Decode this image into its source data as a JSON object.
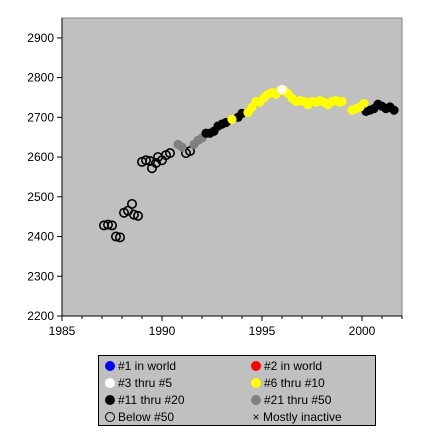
{
  "chart_data": {
    "type": "scatter",
    "title": "",
    "xlabel": "",
    "ylabel": "",
    "xlim": [
      1985,
      2002
    ],
    "ylim": [
      2200,
      2950
    ],
    "xticks": [
      1985,
      1990,
      1995,
      2000
    ],
    "yticks": [
      2200,
      2300,
      2400,
      2500,
      2600,
      2700,
      2800,
      2900
    ],
    "grid": false,
    "background": "#c0c0c0",
    "legend_position": "bottom",
    "legend": [
      {
        "name": "#1 in world",
        "color": "#0000ff",
        "marker": "filled"
      },
      {
        "name": "#2 in world",
        "color": "#ff0000",
        "marker": "filled"
      },
      {
        "name": "#3 thru #5",
        "color": "#ffffff",
        "marker": "filled"
      },
      {
        "name": "#6 thru #10",
        "color": "#ffff00",
        "marker": "filled"
      },
      {
        "name": "#11 thru #20",
        "color": "#000000",
        "marker": "filled"
      },
      {
        "name": "#21 thru #50",
        "color": "#808080",
        "marker": "filled"
      },
      {
        "name": "Below #50",
        "color": "#000000",
        "marker": "open"
      },
      {
        "name": "Mostly inactive",
        "color": "#000000",
        "marker": "x"
      }
    ],
    "series": [
      {
        "name": "Below #50",
        "color": "#000000",
        "marker": "open",
        "points": [
          [
            1987.1,
            2428
          ],
          [
            1987.3,
            2430
          ],
          [
            1987.5,
            2428
          ],
          [
            1987.7,
            2400
          ],
          [
            1987.9,
            2398
          ],
          [
            1988.1,
            2460
          ],
          [
            1988.3,
            2465
          ],
          [
            1988.5,
            2482
          ],
          [
            1988.6,
            2455
          ],
          [
            1988.8,
            2452
          ],
          [
            1989.0,
            2588
          ],
          [
            1989.2,
            2592
          ],
          [
            1989.4,
            2590
          ],
          [
            1989.5,
            2572
          ],
          [
            1989.7,
            2585
          ],
          [
            1989.8,
            2600
          ],
          [
            1990.0,
            2592
          ],
          [
            1990.2,
            2605
          ],
          [
            1990.4,
            2610
          ],
          [
            1991.2,
            2610
          ],
          [
            1991.4,
            2615
          ]
        ]
      },
      {
        "name": "#21 thru #50",
        "color": "#808080",
        "marker": "filled",
        "points": [
          [
            1990.8,
            2632
          ],
          [
            1991.0,
            2625
          ],
          [
            1991.6,
            2632
          ],
          [
            1991.8,
            2642
          ],
          [
            1992.0,
            2648
          ]
        ]
      },
      {
        "name": "#11 thru #20",
        "color": "#000000",
        "marker": "filled",
        "points": [
          [
            1992.2,
            2660
          ],
          [
            1992.4,
            2660
          ],
          [
            1992.6,
            2665
          ],
          [
            1992.8,
            2678
          ],
          [
            1993.0,
            2683
          ],
          [
            1993.2,
            2687
          ],
          [
            1993.8,
            2700
          ],
          [
            1994.0,
            2710
          ],
          [
            2000.2,
            2715
          ],
          [
            2000.4,
            2718
          ],
          [
            2000.6,
            2722
          ],
          [
            2000.8,
            2733
          ],
          [
            2001.0,
            2728
          ],
          [
            2001.2,
            2722
          ],
          [
            2001.4,
            2726
          ],
          [
            2001.6,
            2718
          ]
        ]
      },
      {
        "name": "#6 thru #10",
        "color": "#ffff00",
        "marker": "filled",
        "points": [
          [
            1993.5,
            2695
          ],
          [
            1994.3,
            2712
          ],
          [
            1994.5,
            2725
          ],
          [
            1994.7,
            2740
          ],
          [
            1994.9,
            2738
          ],
          [
            1995.1,
            2750
          ],
          [
            1995.3,
            2758
          ],
          [
            1995.5,
            2762
          ],
          [
            1995.7,
            2758
          ],
          [
            1995.9,
            2768
          ],
          [
            1996.1,
            2768
          ],
          [
            1996.3,
            2760
          ],
          [
            1996.5,
            2748
          ],
          [
            1996.7,
            2740
          ],
          [
            1996.9,
            2742
          ],
          [
            1997.1,
            2740
          ],
          [
            1997.3,
            2732
          ],
          [
            1997.5,
            2740
          ],
          [
            1997.7,
            2738
          ],
          [
            1997.9,
            2742
          ],
          [
            1998.1,
            2738
          ],
          [
            1998.3,
            2732
          ],
          [
            1998.5,
            2740
          ],
          [
            1998.7,
            2742
          ],
          [
            1998.9,
            2738
          ],
          [
            1999.0,
            2740
          ],
          [
            1999.5,
            2718
          ],
          [
            1999.7,
            2722
          ],
          [
            1999.9,
            2726
          ],
          [
            2000.1,
            2735
          ]
        ]
      },
      {
        "name": "#3 thru #5",
        "color": "#ffffff",
        "marker": "filled",
        "points": [
          [
            1996.0,
            2770
          ]
        ]
      }
    ]
  }
}
